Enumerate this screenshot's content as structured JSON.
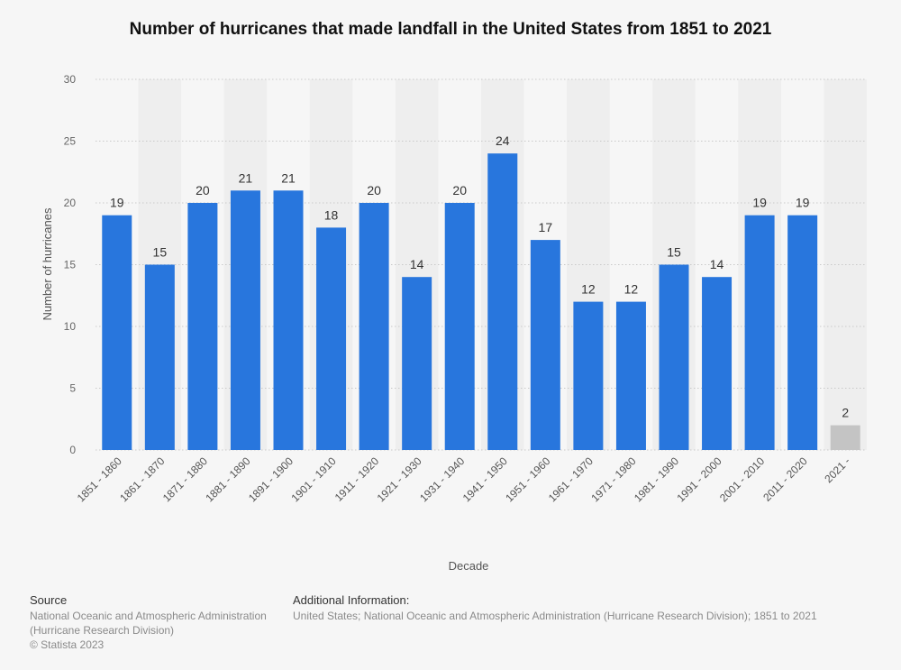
{
  "chart_data": {
    "type": "bar",
    "title": "Number of hurricanes that made landfall in the United States from 1851 to 2021",
    "xlabel": "Decade",
    "ylabel": "Number of hurricanes",
    "ylim": [
      0,
      30
    ],
    "yticks": [
      0,
      5,
      10,
      15,
      20,
      25,
      30
    ],
    "grid": true,
    "categories": [
      "1851 - 1860",
      "1861 - 1870",
      "1871 - 1880",
      "1881 - 1890",
      "1891 - 1900",
      "1901 - 1910",
      "1911 - 1920",
      "1921 - 1930",
      "1931 - 1940",
      "1941 - 1950",
      "1951 - 1960",
      "1961 - 1970",
      "1971 - 1980",
      "1981 - 1990",
      "1991 - 2000",
      "2001 - 2010",
      "2011 - 2020",
      "2021 -"
    ],
    "values": [
      19,
      15,
      20,
      21,
      21,
      18,
      20,
      14,
      20,
      24,
      17,
      12,
      12,
      15,
      14,
      19,
      19,
      2
    ],
    "colors": {
      "bar": "#2876dd",
      "last_bar": "#c4c4c4",
      "band": "#eeeeee",
      "grid": "#c9c9c9"
    }
  },
  "footer": {
    "source_heading": "Source",
    "source_line1": "National Oceanic and Atmospheric Administration",
    "source_line2": "(Hurricane Research Division)",
    "copyright": "© Statista 2023",
    "info_heading": "Additional Information:",
    "info_text": "United States; National Oceanic and Atmospheric Administration (Hurricane Research Division); 1851 to 2021"
  }
}
